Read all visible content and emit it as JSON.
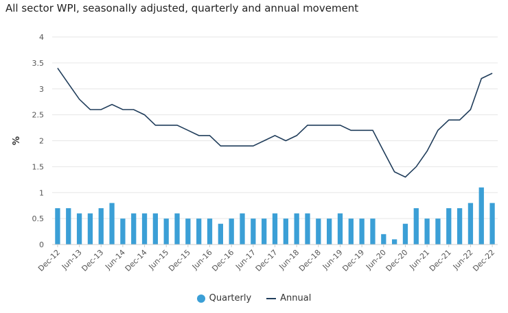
{
  "chart_data": {
    "type": "bar+line",
    "title": "All sector WPI, seasonally adjusted, quarterly and annual movement",
    "ylabel": "%",
    "ylim": [
      0,
      4
    ],
    "yticks": [
      "0",
      "0.5",
      "1",
      "1.5",
      "2",
      "2.5",
      "3",
      "3.5",
      "4"
    ],
    "ytick_values": [
      0,
      0.5,
      1,
      1.5,
      2,
      2.5,
      3,
      3.5,
      4
    ],
    "grid": true,
    "legend_position": "bottom",
    "categories": [
      "Dec-12",
      "Mar-13",
      "Jun-13",
      "Sep-13",
      "Dec-13",
      "Mar-14",
      "Jun-14",
      "Sep-14",
      "Dec-14",
      "Mar-15",
      "Jun-15",
      "Sep-15",
      "Dec-15",
      "Mar-16",
      "Jun-16",
      "Sep-16",
      "Dec-16",
      "Mar-17",
      "Jun-17",
      "Sep-17",
      "Dec-17",
      "Mar-18",
      "Jun-18",
      "Sep-18",
      "Dec-18",
      "Mar-19",
      "Jun-19",
      "Sep-19",
      "Dec-19",
      "Mar-20",
      "Jun-20",
      "Sep-20",
      "Dec-20",
      "Mar-21",
      "Jun-21",
      "Sep-21",
      "Dec-21",
      "Mar-22",
      "Jun-22",
      "Sep-22",
      "Dec-22"
    ],
    "xtick_labels": [
      "Dec-12",
      "Jun-13",
      "Dec-13",
      "Jun-14",
      "Dec-14",
      "Jun-15",
      "Dec-15",
      "Jun-16",
      "Dec-16",
      "Jun-17",
      "Dec-17",
      "Jun-18",
      "Dec-18",
      "Jun-19",
      "Dec-19",
      "Jun-20",
      "Dec-20",
      "Jun-21",
      "Dec-21",
      "Jun-22",
      "Dec-22"
    ],
    "series": [
      {
        "name": "Quarterly",
        "type": "bar",
        "color": "#3b9fd6",
        "values": [
          0.7,
          0.7,
          0.6,
          0.6,
          0.7,
          0.8,
          0.5,
          0.6,
          0.6,
          0.6,
          0.5,
          0.6,
          0.5,
          0.5,
          0.5,
          0.4,
          0.5,
          0.6,
          0.5,
          0.5,
          0.6,
          0.5,
          0.6,
          0.6,
          0.5,
          0.5,
          0.6,
          0.5,
          0.5,
          0.5,
          0.2,
          0.1,
          0.4,
          0.7,
          0.5,
          0.5,
          0.7,
          0.7,
          0.8,
          1.1,
          0.8
        ]
      },
      {
        "name": "Annual",
        "type": "line",
        "color": "#1f3c5a",
        "values": [
          3.4,
          3.1,
          2.8,
          2.6,
          2.6,
          2.7,
          2.6,
          2.6,
          2.5,
          2.3,
          2.3,
          2.3,
          2.2,
          2.1,
          2.1,
          1.9,
          1.9,
          1.9,
          1.9,
          2.0,
          2.1,
          2.0,
          2.1,
          2.3,
          2.3,
          2.3,
          2.3,
          2.2,
          2.2,
          2.2,
          1.8,
          1.4,
          1.3,
          1.5,
          1.8,
          2.2,
          2.4,
          2.4,
          2.6,
          3.2,
          3.3
        ]
      }
    ]
  },
  "legend": {
    "quarterly_label": "Quarterly",
    "annual_label": "Annual"
  }
}
